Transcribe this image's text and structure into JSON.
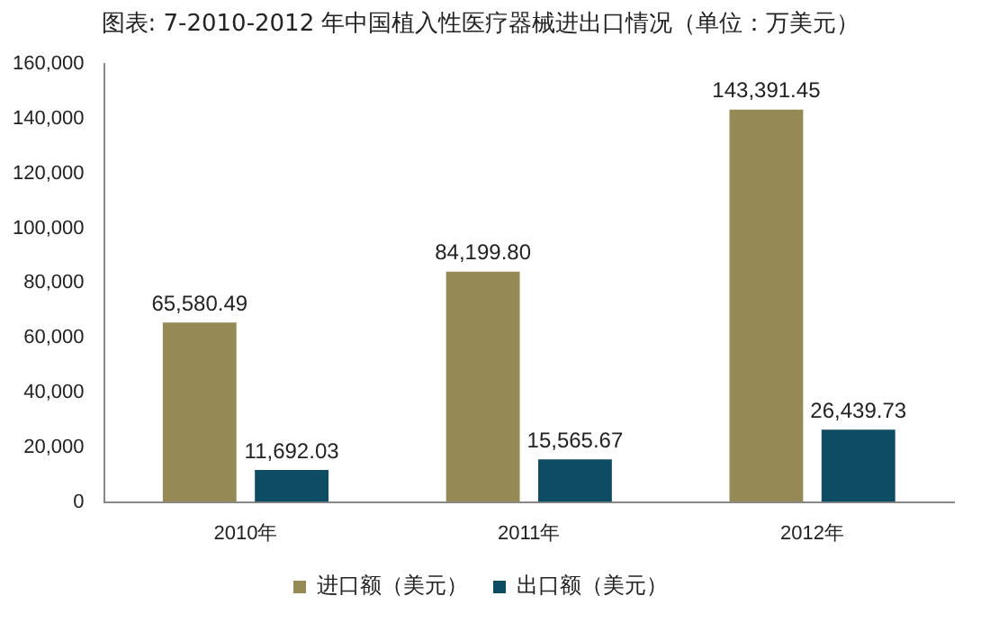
{
  "chart_data": {
    "type": "bar",
    "title": "图表: 7-2010-2012 年中国植入性医疗器械进出口情况（单位：万美元）",
    "categories": [
      "2010年",
      "2011年",
      "2012年"
    ],
    "series": [
      {
        "name": "进口额（美元）",
        "color": "#958a56",
        "values": [
          65580.49,
          84199.8,
          143391.45
        ],
        "value_labels": [
          "65,580.49",
          "84,199.80",
          "143,391.45"
        ]
      },
      {
        "name": "出口额（美元）",
        "color": "#0e4c63",
        "values": [
          11692.03,
          15565.67,
          26439.73
        ],
        "value_labels": [
          "11,692.03",
          "15,565.67",
          "26,439.73"
        ]
      }
    ],
    "ylim": [
      0,
      160000
    ],
    "yticks": [
      0,
      {
        "value": 20000,
        "label": "20,000"
      },
      {
        "value": 40000,
        "label": "40,000"
      },
      {
        "value": 60000,
        "label": "60,000"
      },
      {
        "value": 80000,
        "label": "80,000"
      },
      {
        "value": 100000,
        "label": "100,000"
      },
      {
        "value": 120000,
        "label": "120,000"
      },
      {
        "value": 140000,
        "label": "140,000"
      },
      {
        "value": 160000,
        "label": "160,000"
      }
    ],
    "grid": false,
    "legend": "bottom"
  }
}
